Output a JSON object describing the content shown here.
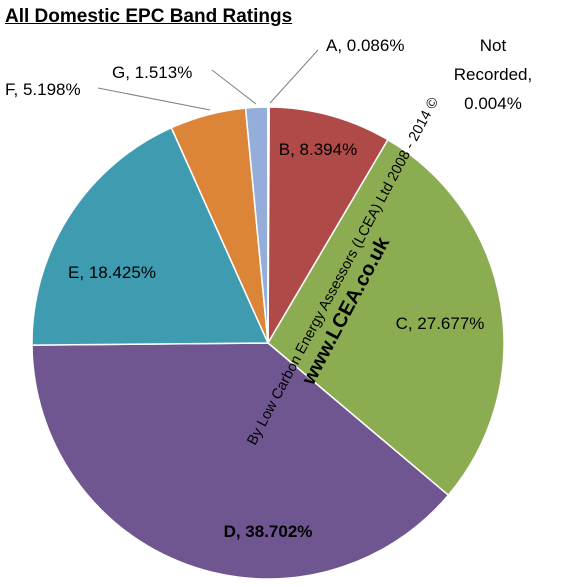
{
  "chart_data": {
    "type": "pie",
    "title": "All Domestic EPC Band Ratings",
    "slices": [
      {
        "category": "A",
        "label": "A, 0.086%",
        "value": 0.086,
        "color": "#4f81bd"
      },
      {
        "category": "B",
        "label": "B, 8.394%",
        "value": 8.394,
        "color": "#b04a48"
      },
      {
        "category": "C",
        "label": "C, 27.677%",
        "value": 27.677,
        "color": "#8cac52"
      },
      {
        "category": "D",
        "label": "D, 38.702%",
        "value": 38.702,
        "color": "#6f5690"
      },
      {
        "category": "E",
        "label": "E, 18.425%",
        "value": 18.425,
        "color": "#3e9bb0"
      },
      {
        "category": "F",
        "label": "F, 5.198%",
        "value": 5.198,
        "color": "#dc8538"
      },
      {
        "category": "G",
        "label": "G, 1.513%",
        "value": 1.513,
        "color": "#94aed9"
      },
      {
        "category": "Not Recorded",
        "label_lines": [
          "Not",
          "Recorded,",
          "0.004%"
        ],
        "value": 0.004,
        "color": "#c0504d"
      }
    ],
    "legend": "none",
    "watermark": {
      "line1": "By Low Carbon Energy Assessors (LCEA) Ltd 2008 - 2014 ©",
      "line2": "www.LCEA.co.uk"
    }
  }
}
